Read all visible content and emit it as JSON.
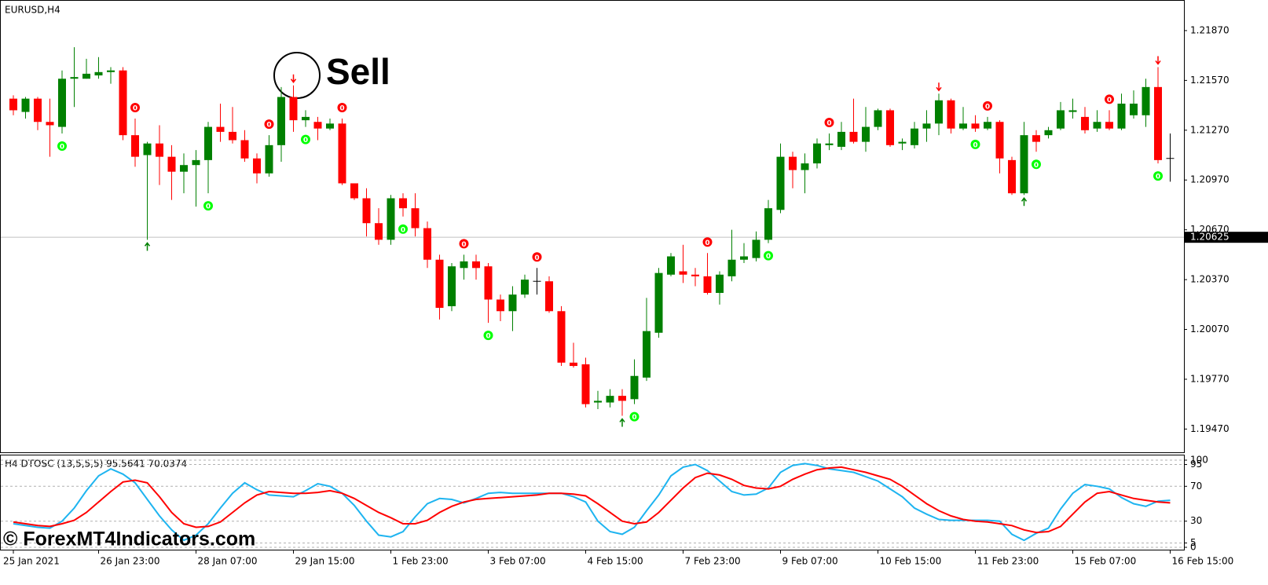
{
  "watermark": "© ForexMT4Indicators.com",
  "chart_data": [
    {
      "type": "candlestick",
      "title": "EURUSD,H4",
      "annotation": "Sell",
      "categories": [
        "25 Jan 2021",
        null,
        null,
        null,
        null,
        null,
        null,
        "26 Jan 23:00",
        null,
        null,
        null,
        null,
        null,
        null,
        null,
        "28 Jan 07:00",
        null,
        null,
        null,
        null,
        null,
        null,
        null,
        "29 Jan 15:00",
        null,
        null,
        null,
        null,
        null,
        null,
        null,
        "1 Feb 23:00",
        null,
        null,
        null,
        null,
        null,
        null,
        null,
        "3 Feb 07:00",
        null,
        null,
        null,
        null,
        null,
        null,
        null,
        "4 Feb 15:00",
        null,
        null,
        null,
        null,
        null,
        null,
        null,
        "7 Feb 23:00",
        null,
        null,
        null,
        null,
        null,
        null,
        null,
        "9 Feb 07:00",
        null,
        null,
        null,
        null,
        null,
        null,
        null,
        "10 Feb 15:00",
        null,
        null,
        null,
        null,
        null,
        null,
        null,
        "11 Feb 23:00",
        null,
        null,
        null,
        null,
        null,
        null,
        null,
        "15 Feb 07:00",
        null,
        null,
        null,
        null,
        null,
        null,
        null,
        "16 Feb 15:00"
      ],
      "open": [
        1.2146,
        1.2138,
        1.2146,
        1.2132,
        1.2129,
        1.2158,
        1.2158,
        1.216,
        1.2162,
        1.2163,
        1.2124,
        1.2112,
        1.2119,
        1.2111,
        1.2102,
        1.2106,
        1.2109,
        1.2129,
        1.2126,
        1.2121,
        1.211,
        1.2101,
        1.2118,
        1.2147,
        1.2133,
        1.2132,
        1.2128,
        1.2131,
        1.2095,
        1.2086,
        1.2071,
        1.2061,
        1.2086,
        1.208,
        1.2068,
        1.2049,
        1.2021,
        1.2044,
        1.2048,
        1.2045,
        1.2025,
        1.2018,
        1.2028,
        1.2036,
        1.2036,
        1.2018,
        1.1987,
        1.1986,
        1.1963,
        1.1963,
        1.1967,
        1.1965,
        1.1978,
        1.2005,
        1.204,
        1.2042,
        1.204,
        1.2039,
        1.2029,
        1.2039,
        1.2049,
        1.205,
        1.2061,
        1.2079,
        1.2111,
        1.2103,
        1.2107,
        1.2118,
        1.2117,
        1.2126,
        1.212,
        1.2129,
        1.2139,
        1.2119,
        1.2118,
        1.2128,
        1.2131,
        1.2145,
        1.2128,
        1.2131,
        1.2128,
        1.2132,
        1.2109,
        1.2089,
        1.2124,
        1.2124,
        1.2128,
        1.2138,
        1.2135,
        1.2128,
        1.2132,
        1.2128,
        1.2136,
        1.2136,
        1.2153,
        1.211
      ],
      "high": [
        1.2148,
        1.2147,
        1.2147,
        1.2146,
        1.2163,
        1.2177,
        1.217,
        1.2171,
        1.2165,
        1.2165,
        1.2134,
        1.212,
        1.213,
        1.2118,
        1.2113,
        1.2115,
        1.2132,
        1.2143,
        1.2141,
        1.2127,
        1.2113,
        1.2124,
        1.2153,
        1.2154,
        1.2139,
        1.2135,
        1.2134,
        1.2134,
        1.2095,
        1.2092,
        1.208,
        1.2088,
        1.2089,
        1.2089,
        1.2072,
        1.2052,
        1.2047,
        1.2052,
        1.2052,
        1.2047,
        1.2028,
        1.2033,
        1.204,
        1.2044,
        1.2039,
        1.2021,
        1.1999,
        1.199,
        1.197,
        1.1971,
        1.1971,
        1.1989,
        1.2026,
        1.2044,
        1.2053,
        1.2058,
        1.2044,
        1.2053,
        1.2042,
        1.2067,
        1.2059,
        1.2066,
        1.2085,
        1.2119,
        1.2114,
        1.2113,
        1.2122,
        1.2125,
        1.2132,
        1.2146,
        1.2141,
        1.214,
        1.214,
        1.2122,
        1.2132,
        1.2139,
        1.2149,
        1.2146,
        1.2141,
        1.2136,
        1.2135,
        1.2133,
        1.2111,
        1.2132,
        1.2127,
        1.2129,
        1.2144,
        1.2146,
        1.2141,
        1.2139,
        1.2139,
        1.2149,
        1.2151,
        1.2158,
        1.2165,
        1.2125
      ],
      "low": [
        1.2136,
        1.2134,
        1.2127,
        1.2111,
        1.2125,
        1.2141,
        1.2158,
        1.2158,
        1.2155,
        1.2121,
        1.2105,
        1.2061,
        1.2094,
        1.2085,
        1.2089,
        1.2081,
        1.2089,
        1.212,
        1.2119,
        1.2108,
        1.2095,
        1.2099,
        1.2108,
        1.2126,
        1.2129,
        1.2121,
        1.2127,
        1.2094,
        1.2085,
        1.2063,
        1.2058,
        1.2058,
        1.2075,
        1.2063,
        1.2044,
        1.2013,
        1.2018,
        1.2037,
        1.2037,
        1.2011,
        1.2012,
        1.2006,
        1.2026,
        1.2028,
        1.2017,
        1.1985,
        1.1984,
        1.196,
        1.1959,
        1.196,
        1.1955,
        1.1962,
        1.1976,
        1.2002,
        1.2039,
        1.2035,
        1.2033,
        1.2028,
        1.2022,
        1.2036,
        1.2047,
        1.2048,
        1.2059,
        1.2077,
        1.2092,
        1.2089,
        1.2104,
        1.2115,
        1.2115,
        1.2119,
        1.2114,
        1.2127,
        1.2117,
        1.2115,
        1.2116,
        1.212,
        1.2124,
        1.2125,
        1.2127,
        1.2126,
        1.2127,
        1.2101,
        1.2088,
        1.2088,
        1.2114,
        1.2122,
        1.2127,
        1.2134,
        1.2125,
        1.2126,
        1.2127,
        1.2127,
        1.2134,
        1.2129,
        1.2107,
        1.2096
      ],
      "close": [
        1.2139,
        1.2146,
        1.2132,
        1.213,
        1.2158,
        1.2159,
        1.2161,
        1.2162,
        1.2163,
        1.2124,
        1.2111,
        1.2119,
        1.2111,
        1.2102,
        1.2106,
        1.2109,
        1.2129,
        1.2126,
        1.2121,
        1.211,
        1.2101,
        1.2118,
        1.2147,
        1.2133,
        1.2135,
        1.2128,
        1.2131,
        1.2095,
        1.2086,
        1.2071,
        1.2061,
        1.2086,
        1.208,
        1.2068,
        1.2049,
        1.202,
        1.2045,
        1.2048,
        1.2044,
        1.2025,
        1.2018,
        1.2028,
        1.2037,
        1.2036,
        1.2018,
        1.1987,
        1.1985,
        1.1962,
        1.1964,
        1.1967,
        1.1964,
        1.1979,
        1.2006,
        1.2041,
        1.2051,
        1.204,
        1.2039,
        1.2029,
        1.204,
        1.2049,
        1.2051,
        1.2061,
        1.208,
        1.2111,
        1.2103,
        1.2107,
        1.2119,
        1.2119,
        1.2126,
        1.212,
        1.2129,
        1.2139,
        1.2118,
        1.212,
        1.2128,
        1.2131,
        1.2145,
        1.2128,
        1.2131,
        1.2128,
        1.2132,
        1.211,
        1.2089,
        1.2124,
        1.212,
        1.2127,
        1.2139,
        1.2139,
        1.2127,
        1.2132,
        1.2128,
        1.2143,
        1.2143,
        1.2153,
        1.2109,
        1.211
      ],
      "up_color": "#008000",
      "down_color": "#ff0000",
      "ylim": [
        1.1933,
        1.2204
      ],
      "yticks": [
        {
          "value": 1.2187,
          "label": "1.21870"
        },
        {
          "value": 1.2157,
          "label": "1.21570"
        },
        {
          "value": 1.2127,
          "label": "1.21270"
        },
        {
          "value": 1.2097,
          "label": "1.20970"
        },
        {
          "value": 1.2067,
          "label": "1.20670"
        },
        {
          "value": 1.2037,
          "label": "1.20370"
        },
        {
          "value": 1.2007,
          "label": "1.20070"
        },
        {
          "value": 1.1977,
          "label": "1.19770"
        },
        {
          "value": 1.1947,
          "label": "1.19470"
        }
      ],
      "current_price": 1.20625,
      "signals": [
        {
          "index": 10,
          "label": "0",
          "side": "sell",
          "color": "#ff0000"
        },
        {
          "index": 21,
          "label": "0",
          "side": "sell",
          "color": "#ff0000"
        },
        {
          "index": 27,
          "label": "0",
          "side": "sell",
          "color": "#ff0000"
        },
        {
          "index": 37,
          "label": "0",
          "side": "sell",
          "color": "#ff0000"
        },
        {
          "index": 43,
          "label": "0",
          "side": "sell",
          "color": "#ff0000"
        },
        {
          "index": 57,
          "label": "0",
          "side": "sell",
          "color": "#ff0000"
        },
        {
          "index": 67,
          "label": "0",
          "side": "sell",
          "color": "#ff0000"
        },
        {
          "index": 80,
          "label": "0",
          "side": "sell",
          "color": "#ff0000"
        },
        {
          "index": 90,
          "label": "0",
          "side": "sell",
          "color": "#ff0000"
        },
        {
          "index": 4,
          "label": "0",
          "side": "buy",
          "color": "#00ff00"
        },
        {
          "index": 16,
          "label": "0",
          "side": "buy",
          "color": "#00ff00"
        },
        {
          "index": 24,
          "label": "0",
          "side": "buy",
          "color": "#00ff00"
        },
        {
          "index": 32,
          "label": "0",
          "side": "buy",
          "color": "#00ff00"
        },
        {
          "index": 39,
          "label": "0",
          "side": "buy",
          "color": "#00ff00"
        },
        {
          "index": 51,
          "label": "0",
          "side": "buy",
          "color": "#00ff00"
        },
        {
          "index": 62,
          "label": "0",
          "side": "buy",
          "color": "#00ff00"
        },
        {
          "index": 79,
          "label": "0",
          "side": "buy",
          "color": "#00ff00"
        },
        {
          "index": 84,
          "label": "0",
          "side": "buy",
          "color": "#00ff00"
        },
        {
          "index": 94,
          "label": "0",
          "side": "buy",
          "color": "#00ff00"
        }
      ],
      "arrows": [
        {
          "index": 23,
          "side": "sell",
          "color": "#ff0000"
        },
        {
          "index": 76,
          "side": "sell",
          "color": "#ff0000"
        },
        {
          "index": 94,
          "side": "sell",
          "color": "#ff0000"
        },
        {
          "index": 11,
          "side": "buy",
          "color": "#008000"
        },
        {
          "index": 50,
          "side": "buy",
          "color": "#008000"
        },
        {
          "index": 83,
          "side": "buy",
          "color": "#008000"
        }
      ]
    },
    {
      "type": "line",
      "title": "H4 DTOSC (13,5,5,5) 95.5641 70.0374",
      "series": [
        {
          "color": "#1eb4f0",
          "values": [
            27,
            25,
            23,
            22,
            30,
            45,
            65,
            82,
            90,
            84,
            74,
            55,
            36,
            20,
            8,
            14,
            27,
            45,
            62,
            74,
            66,
            60,
            59,
            58,
            65,
            73,
            70,
            62,
            48,
            30,
            14,
            12,
            18,
            35,
            50,
            56,
            55,
            51,
            56,
            62,
            63,
            62,
            62,
            62,
            62,
            62,
            58,
            52,
            30,
            18,
            15,
            23,
            42,
            60,
            82,
            92,
            95,
            88,
            76,
            64,
            60,
            61,
            68,
            86,
            94,
            96,
            94,
            90,
            88,
            86,
            81,
            76,
            67,
            58,
            45,
            38,
            32,
            31,
            31,
            31,
            31,
            30,
            15,
            8,
            16,
            22,
            44,
            62,
            72,
            70,
            67,
            57,
            50,
            47,
            53,
            54
          ]
        },
        {
          "color": "#ff0000",
          "values": [
            29,
            27,
            25,
            24,
            27,
            31,
            40,
            52,
            64,
            75,
            77,
            74,
            58,
            40,
            27,
            23,
            24,
            29,
            40,
            51,
            60,
            64,
            63,
            62,
            62,
            63,
            65,
            62,
            56,
            48,
            40,
            34,
            27,
            27,
            31,
            40,
            47,
            52,
            55,
            56,
            57,
            58,
            59,
            60,
            62,
            62,
            61,
            59,
            50,
            40,
            30,
            27,
            29,
            40,
            54,
            68,
            80,
            85,
            83,
            78,
            71,
            68,
            67,
            70,
            78,
            84,
            89,
            91,
            92,
            89,
            86,
            82,
            78,
            70,
            60,
            50,
            42,
            36,
            32,
            30,
            29,
            27,
            25,
            20,
            17,
            18,
            24,
            38,
            52,
            62,
            64,
            60,
            56,
            54,
            52,
            51
          ]
        }
      ],
      "ylim": [
        0,
        100
      ],
      "yticks": [
        0,
        5,
        30,
        70,
        95,
        100
      ],
      "grid": true
    }
  ]
}
